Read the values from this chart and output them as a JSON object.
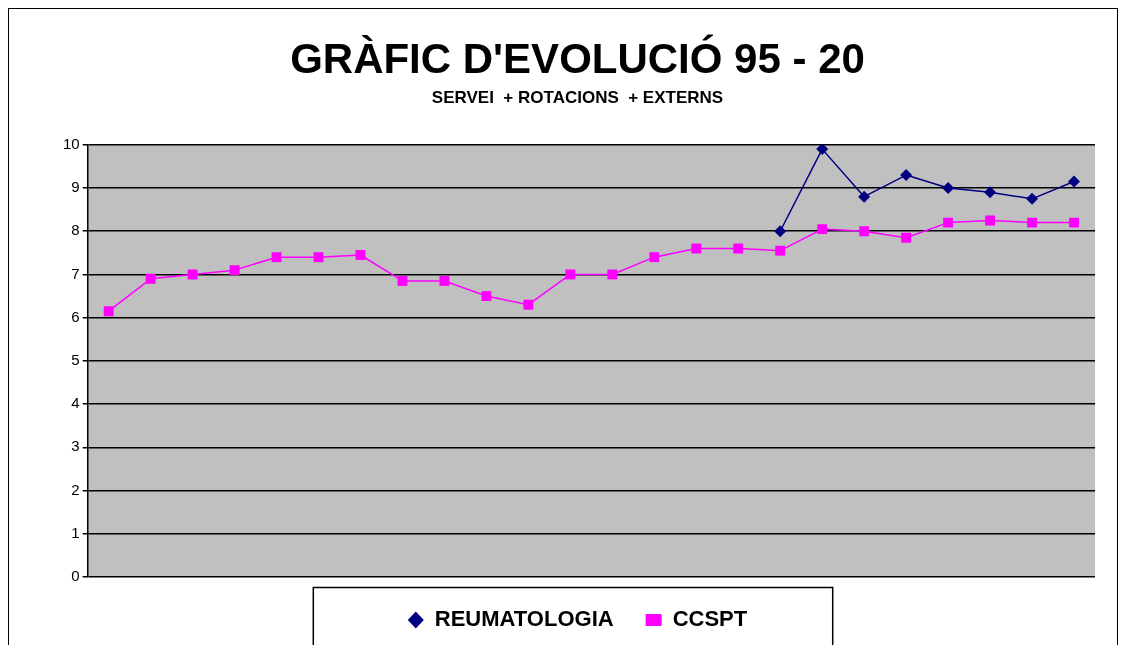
{
  "chart_data": {
    "type": "line",
    "title": "GRÀFIC D'EVOLUCIÓ 95 - 20",
    "subtitle": "SERVEI  + ROTACIONS  + EXTERNS",
    "categories": [
      null,
      null,
      null,
      null,
      null,
      null,
      null,
      null,
      null,
      null,
      null,
      null,
      null,
      null,
      null,
      null,
      null,
      null,
      null,
      null,
      null,
      null,
      null,
      null
    ],
    "series": [
      {
        "name": "REUMATOLOGIA",
        "color": "#000080",
        "marker": "diamond",
        "values": [
          null,
          null,
          null,
          null,
          null,
          null,
          null,
          null,
          null,
          null,
          null,
          null,
          null,
          null,
          null,
          null,
          8.0,
          9.9,
          8.8,
          9.3,
          9.0,
          8.9,
          8.75,
          9.15
        ]
      },
      {
        "name": "CCSPT",
        "color": "#ff00ff",
        "marker": "square",
        "values": [
          6.15,
          6.9,
          7.0,
          7.1,
          7.4,
          7.4,
          7.45,
          6.85,
          6.85,
          6.5,
          6.3,
          7.0,
          7.0,
          7.4,
          7.6,
          7.6,
          7.55,
          8.05,
          8.0,
          7.85,
          8.2,
          8.25,
          8.2,
          8.2
        ]
      }
    ],
    "ylim": [
      0,
      10
    ],
    "yticks": [
      0,
      1,
      2,
      3,
      4,
      5,
      6,
      7,
      8,
      9,
      10
    ],
    "grid": "y",
    "legend": "bottom",
    "tick_labels": "y"
  }
}
